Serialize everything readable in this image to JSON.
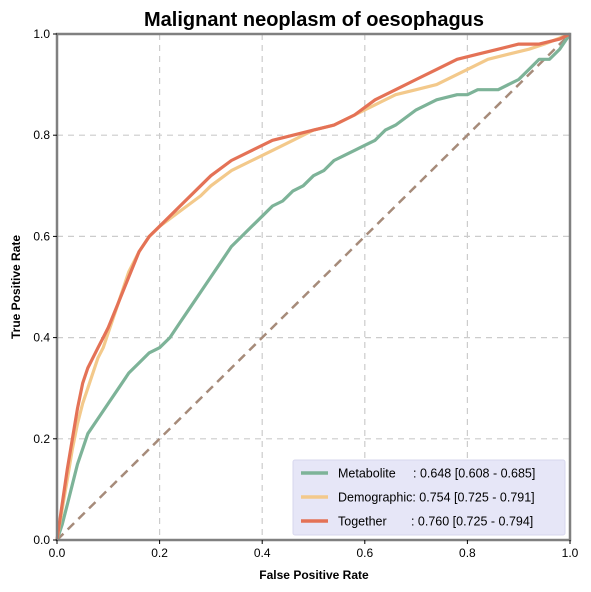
{
  "chart_data": {
    "type": "line",
    "title": "Malignant neoplasm of oesophagus",
    "xlabel": "False Positive Rate",
    "ylabel": "True Positive Rate",
    "xlim": [
      0,
      1
    ],
    "ylim": [
      0,
      1
    ],
    "xticks": [
      "0.0",
      "0.2",
      "0.4",
      "0.6",
      "0.8",
      "1.0"
    ],
    "yticks": [
      "0.0",
      "0.2",
      "0.4",
      "0.6",
      "0.8",
      "1.0"
    ],
    "grid": true,
    "legend_position": "lower-right",
    "colors": {
      "legend_bg": "#e6e6f7",
      "diagonal": "#a68b7a",
      "grid": "#cccccc",
      "frame": "#808080"
    },
    "series": [
      {
        "name": "Metabolite",
        "legend_label": "Metabolite     : 0.648 [0.608 - 0.685]",
        "color": "#7db398",
        "x": [
          0,
          0.01,
          0.02,
          0.03,
          0.04,
          0.05,
          0.06,
          0.08,
          0.1,
          0.12,
          0.14,
          0.16,
          0.18,
          0.2,
          0.22,
          0.24,
          0.26,
          0.28,
          0.3,
          0.32,
          0.34,
          0.36,
          0.38,
          0.4,
          0.42,
          0.44,
          0.46,
          0.48,
          0.5,
          0.52,
          0.54,
          0.56,
          0.58,
          0.6,
          0.62,
          0.64,
          0.66,
          0.7,
          0.74,
          0.78,
          0.8,
          0.82,
          0.84,
          0.86,
          0.88,
          0.9,
          0.92,
          0.94,
          0.96,
          0.98,
          1.0
        ],
        "y": [
          0,
          0.03,
          0.07,
          0.11,
          0.15,
          0.18,
          0.21,
          0.24,
          0.27,
          0.3,
          0.33,
          0.35,
          0.37,
          0.38,
          0.4,
          0.43,
          0.46,
          0.49,
          0.52,
          0.55,
          0.58,
          0.6,
          0.62,
          0.64,
          0.66,
          0.67,
          0.69,
          0.7,
          0.72,
          0.73,
          0.75,
          0.76,
          0.77,
          0.78,
          0.79,
          0.81,
          0.82,
          0.85,
          0.87,
          0.88,
          0.88,
          0.89,
          0.89,
          0.89,
          0.9,
          0.91,
          0.93,
          0.95,
          0.95,
          0.97,
          1.0
        ]
      },
      {
        "name": "Demographic",
        "legend_label": "Demographic: 0.754 [0.725 - 0.791]",
        "color": "#f3c98b",
        "x": [
          0,
          0.01,
          0.02,
          0.03,
          0.04,
          0.05,
          0.06,
          0.07,
          0.08,
          0.09,
          0.1,
          0.12,
          0.14,
          0.16,
          0.18,
          0.2,
          0.24,
          0.28,
          0.3,
          0.34,
          0.38,
          0.42,
          0.46,
          0.5,
          0.54,
          0.58,
          0.62,
          0.66,
          0.7,
          0.74,
          0.8,
          0.84,
          0.88,
          0.92,
          0.95,
          1.0
        ],
        "y": [
          0,
          0.06,
          0.12,
          0.18,
          0.23,
          0.27,
          0.3,
          0.33,
          0.36,
          0.38,
          0.41,
          0.47,
          0.53,
          0.57,
          0.6,
          0.62,
          0.65,
          0.68,
          0.7,
          0.73,
          0.75,
          0.77,
          0.79,
          0.81,
          0.82,
          0.84,
          0.86,
          0.88,
          0.89,
          0.9,
          0.93,
          0.95,
          0.96,
          0.97,
          0.98,
          1.0
        ]
      },
      {
        "name": "Together",
        "legend_label": "Together       : 0.760 [0.725 - 0.794]",
        "color": "#e47256",
        "x": [
          0,
          0.01,
          0.02,
          0.03,
          0.04,
          0.05,
          0.06,
          0.07,
          0.08,
          0.09,
          0.1,
          0.12,
          0.14,
          0.16,
          0.18,
          0.2,
          0.24,
          0.28,
          0.3,
          0.34,
          0.38,
          0.42,
          0.46,
          0.5,
          0.54,
          0.58,
          0.62,
          0.66,
          0.7,
          0.74,
          0.78,
          0.82,
          0.86,
          0.9,
          0.94,
          0.98,
          1.0
        ],
        "y": [
          0,
          0.07,
          0.14,
          0.2,
          0.26,
          0.31,
          0.34,
          0.36,
          0.38,
          0.4,
          0.42,
          0.47,
          0.52,
          0.57,
          0.6,
          0.62,
          0.66,
          0.7,
          0.72,
          0.75,
          0.77,
          0.79,
          0.8,
          0.81,
          0.82,
          0.84,
          0.87,
          0.89,
          0.91,
          0.93,
          0.95,
          0.96,
          0.97,
          0.98,
          0.98,
          0.99,
          1.0
        ]
      },
      {
        "name": "",
        "color": "#a68b7a",
        "dashed": true,
        "x": [
          0,
          1
        ],
        "y": [
          0,
          1
        ]
      }
    ]
  }
}
